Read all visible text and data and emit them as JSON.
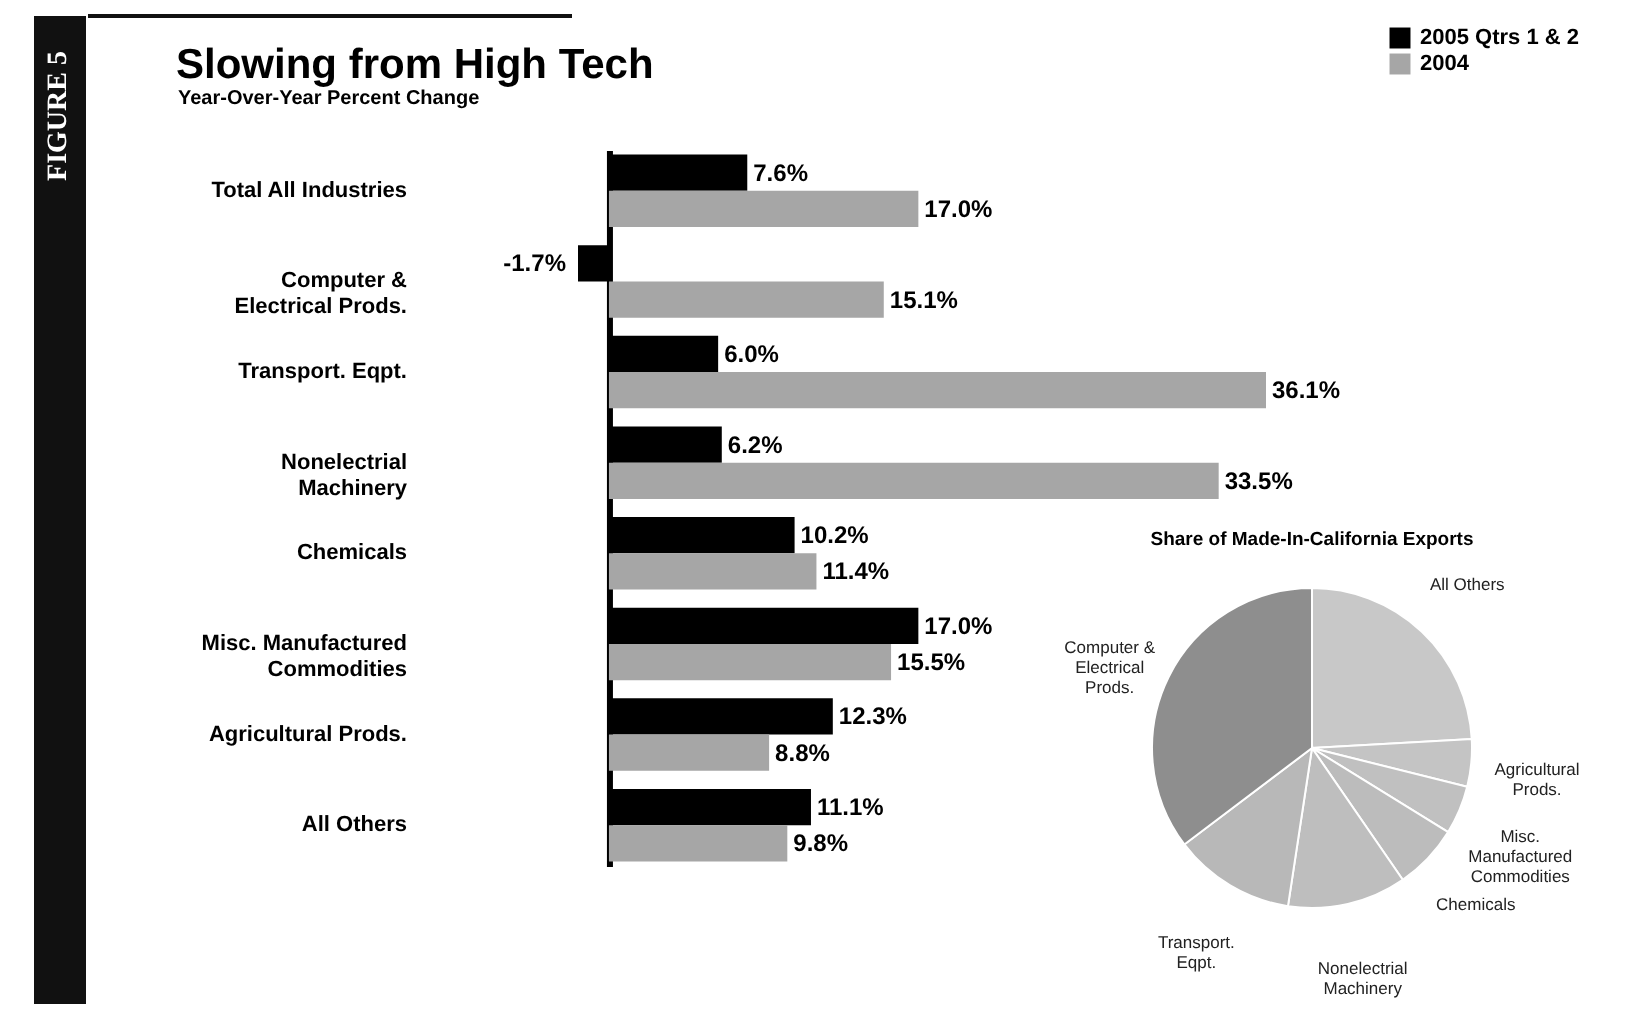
{
  "chart_data": [
    {
      "type": "bar",
      "orientation": "horizontal",
      "title": "Slowing from High Tech",
      "subtitle": "Year-Over-Year Percent Change",
      "annotations": [
        "FIGURE 5"
      ],
      "categories": [
        "Total All Industries",
        "Computer & Electrical Prods.",
        "Transport. Eqpt.",
        "Nonelectrial Machinery",
        "Chemicals",
        "Misc. Manufactured Commodities",
        "Agricultural Prods.",
        "All Others"
      ],
      "series": [
        {
          "name": "2005 Qtrs 1 & 2",
          "color": "#000000",
          "values": [
            7.6,
            -1.7,
            6.0,
            6.2,
            10.2,
            17.0,
            12.3,
            11.1
          ],
          "value_labels": [
            "7.6%",
            "-1.7%",
            "6.0%",
            "6.2%",
            "10.2%",
            "17.0%",
            "12.3%",
            "11.1%"
          ]
        },
        {
          "name": "2004",
          "color": "#a6a6a6",
          "values": [
            17.0,
            15.1,
            36.1,
            33.5,
            11.4,
            15.5,
            8.8,
            9.8
          ],
          "value_labels": [
            "17.0%",
            "15.1%",
            "36.1%",
            "33.5%",
            "11.4%",
            "15.5%",
            "8.8%",
            "9.8%"
          ]
        }
      ],
      "legend": "top right",
      "tick_labels": "y"
    },
    {
      "type": "pie",
      "title": "Share of Made-In-California Exports",
      "categories": [
        "All Others",
        "Agricultural Prods.",
        "Misc. Manufactured Commodities",
        "Chemicals",
        "Nonelectrial Machinery",
        "Transport. Eqpt.",
        "Computer & Electrical Prods."
      ],
      "values": [
        24.1,
        4.8,
        4.9,
        6.6,
        12.0,
        12.3,
        35.3
      ],
      "colors": [
        "#c8c8c8",
        "#c4c4c4",
        "#c0c0c0",
        "#bcbcbc",
        "#bebebe",
        "#b8b8b8",
        "#8e8e8e"
      ]
    }
  ]
}
